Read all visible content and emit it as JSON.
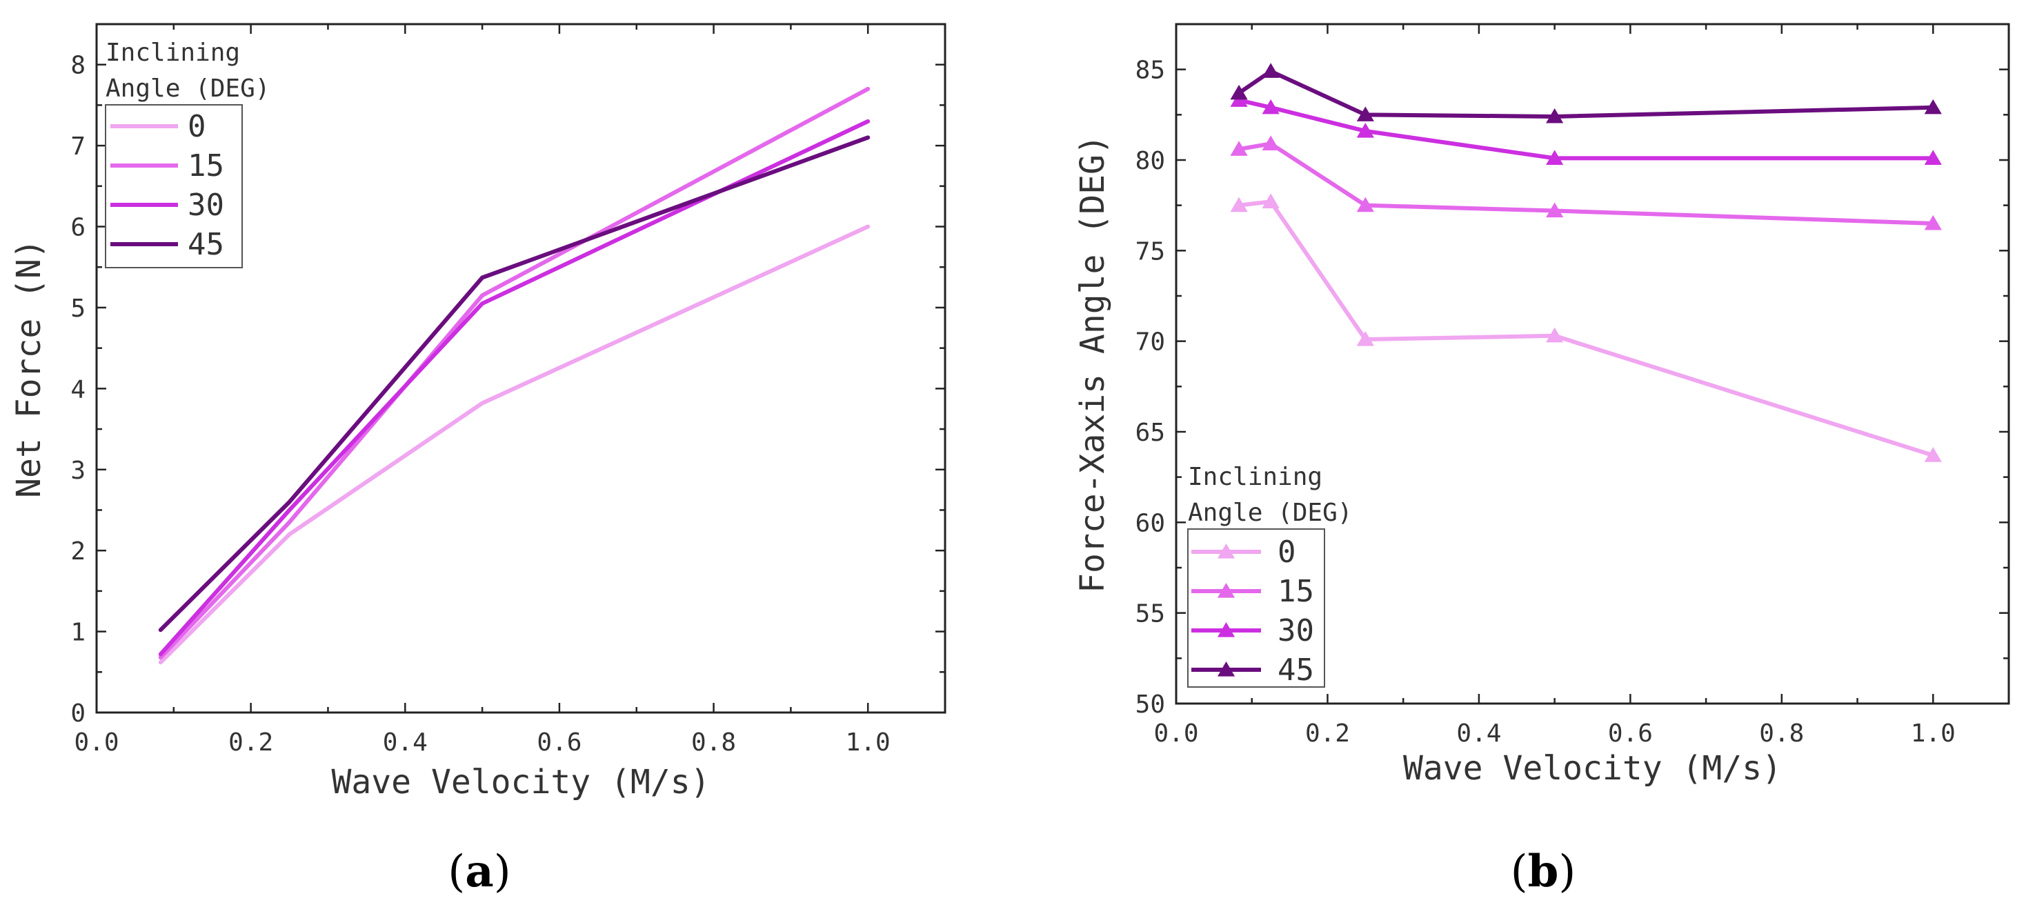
{
  "chart_data": [
    {
      "id": "a",
      "type": "line",
      "panel_label": {
        "open": "(",
        "letter": "a",
        "close": ")"
      },
      "xlabel": "Wave Velocity (M/s)",
      "ylabel": "Net Force (N)",
      "xlim": [
        0.0,
        1.1
      ],
      "ylim": [
        0,
        8.5
      ],
      "xticks": [
        0.0,
        0.2,
        0.4,
        0.6,
        0.8,
        1.0
      ],
      "xtick_labels": [
        "0.0",
        "0.2",
        "0.4",
        "0.6",
        "0.8",
        "1.0"
      ],
      "yticks": [
        0,
        1,
        2,
        3,
        4,
        5,
        6,
        7,
        8
      ],
      "ytick_labels": [
        "0",
        "1",
        "2",
        "3",
        "4",
        "5",
        "6",
        "7",
        "8"
      ],
      "legend": {
        "title_line1": "Inclining",
        "title_line2": "Angle (DEG)",
        "position": "top-left"
      },
      "markers": false,
      "series": [
        {
          "name": "0",
          "color": "#f0a6f0",
          "x": [
            0.083,
            0.25,
            0.5,
            1.0
          ],
          "y": [
            0.62,
            2.2,
            3.82,
            6.0
          ]
        },
        {
          "name": "15",
          "color": "#e468ec",
          "x": [
            0.083,
            0.25,
            0.5,
            1.0
          ],
          "y": [
            0.68,
            2.35,
            5.15,
            7.7
          ]
        },
        {
          "name": "30",
          "color": "#cc2fe0",
          "x": [
            0.083,
            0.25,
            0.5,
            1.0
          ],
          "y": [
            0.72,
            2.5,
            5.05,
            7.3
          ]
        },
        {
          "name": "45",
          "color": "#6a0d7e",
          "x": [
            0.083,
            0.25,
            0.5,
            1.0
          ],
          "y": [
            1.02,
            2.6,
            5.37,
            7.1
          ]
        }
      ]
    },
    {
      "id": "b",
      "type": "line",
      "panel_label": {
        "open": "(",
        "letter": "b",
        "close": ")"
      },
      "xlabel": "Wave Velocity (M/s)",
      "ylabel": "Force-Xaxis Angle (DEG)",
      "xlim": [
        0.0,
        1.1
      ],
      "ylim": [
        50,
        87.5
      ],
      "xticks": [
        0.0,
        0.2,
        0.4,
        0.6,
        0.8,
        1.0
      ],
      "xtick_labels": [
        "0.0",
        "0.2",
        "0.4",
        "0.6",
        "0.8",
        "1.0"
      ],
      "yticks": [
        50,
        55,
        60,
        65,
        70,
        75,
        80,
        85
      ],
      "ytick_labels": [
        "50",
        "55",
        "60",
        "65",
        "70",
        "75",
        "80",
        "85"
      ],
      "legend": {
        "title_line1": "Inclining",
        "title_line2": "Angle (DEG)",
        "position": "bottom-left"
      },
      "markers": true,
      "series": [
        {
          "name": "0",
          "color": "#f0a6f0",
          "x": [
            0.083,
            0.125,
            0.25,
            0.5,
            1.0
          ],
          "y": [
            77.5,
            77.7,
            70.1,
            70.3,
            63.7
          ]
        },
        {
          "name": "15",
          "color": "#e468ec",
          "x": [
            0.083,
            0.125,
            0.25,
            0.5,
            1.0
          ],
          "y": [
            80.6,
            80.9,
            77.5,
            77.2,
            76.5
          ]
        },
        {
          "name": "30",
          "color": "#cc2fe0",
          "x": [
            0.083,
            0.125,
            0.25,
            0.5,
            1.0
          ],
          "y": [
            83.3,
            82.9,
            81.6,
            80.1,
            80.1
          ]
        },
        {
          "name": "45",
          "color": "#6a0d7e",
          "x": [
            0.083,
            0.125,
            0.25,
            0.5,
            1.0
          ],
          "y": [
            83.7,
            84.9,
            82.5,
            82.4,
            82.9
          ]
        }
      ]
    }
  ]
}
